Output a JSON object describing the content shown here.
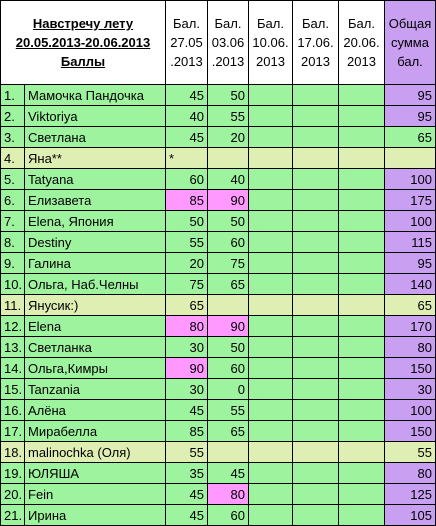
{
  "header": {
    "title": "Навстречу лету",
    "dates": "20.05.2013-20.06.2013",
    "subtitle": "Баллы",
    "columns": [
      [
        "Бал.",
        "27.05",
        ".2013"
      ],
      [
        "Бал.",
        "03.06",
        ".2013"
      ],
      [
        "Бал.",
        "10.06.",
        "2013"
      ],
      [
        "Бал.",
        "17.06.",
        "2013"
      ],
      [
        "Бал.",
        "20.06.",
        "2013"
      ],
      [
        "Общая",
        "сумма",
        "бал."
      ]
    ]
  },
  "table": {
    "rows": [
      {
        "n": "1.",
        "name": "Мамочка Пандочка",
        "scores": [
          45,
          50
        ],
        "total": 95
      },
      {
        "n": "2.",
        "name": "Viktoriya",
        "scores": [
          40,
          55
        ],
        "total": 95
      },
      {
        "n": "3.",
        "name": "Светлана",
        "scores": [
          45,
          20
        ],
        "total": 65
      },
      {
        "n": "4.",
        "name": "Яна**",
        "scores": [
          "*"
        ]
      },
      {
        "n": "5.",
        "name": "Tatyana",
        "scores": [
          60,
          40
        ],
        "total": 100
      },
      {
        "n": "6.",
        "name": "Елизавета",
        "scores": [
          85,
          90
        ],
        "total": 175
      },
      {
        "n": "7.",
        "name": "Elena, Япония",
        "scores": [
          50,
          50
        ],
        "total": 100
      },
      {
        "n": "8.",
        "name": "Destiny",
        "scores": [
          55,
          60
        ],
        "total": 115
      },
      {
        "n": "9.",
        "name": "Галина",
        "scores": [
          20,
          75
        ],
        "total": 95
      },
      {
        "n": "10.",
        "name": "Ольга, Наб.Челны",
        "scores": [
          75,
          65
        ],
        "total": 140
      },
      {
        "n": "11.",
        "name": "Янусик:)",
        "scores": [
          65
        ],
        "total": 65
      },
      {
        "n": "12.",
        "name": "Elena",
        "scores": [
          80,
          90
        ],
        "total": 170
      },
      {
        "n": "13.",
        "name": "Светланка",
        "scores": [
          30,
          50
        ],
        "total": 80
      },
      {
        "n": "14.",
        "name": "Ольга,Кимры",
        "scores": [
          90,
          60
        ],
        "total": 150
      },
      {
        "n": "15.",
        "name": "Tanzania",
        "scores": [
          30,
          0
        ],
        "total": 30
      },
      {
        "n": "16.",
        "name": "Алёна",
        "scores": [
          45,
          55
        ],
        "total": 100
      },
      {
        "n": "17.",
        "name": "Мирабелла",
        "scores": [
          85,
          65
        ],
        "total": 150
      },
      {
        "n": "18.",
        "name": "malinochka (Оля)",
        "scores": [
          55
        ],
        "total": 55
      },
      {
        "n": "19.",
        "name": "ЮЛЯША",
        "scores": [
          35,
          45
        ],
        "total": 80
      },
      {
        "n": "20.",
        "name": "Fein",
        "scores": [
          45,
          80
        ],
        "total": 125
      },
      {
        "n": "21.",
        "name": "Ирина",
        "scores": [
          45,
          60
        ],
        "total": 105
      }
    ]
  }
}
